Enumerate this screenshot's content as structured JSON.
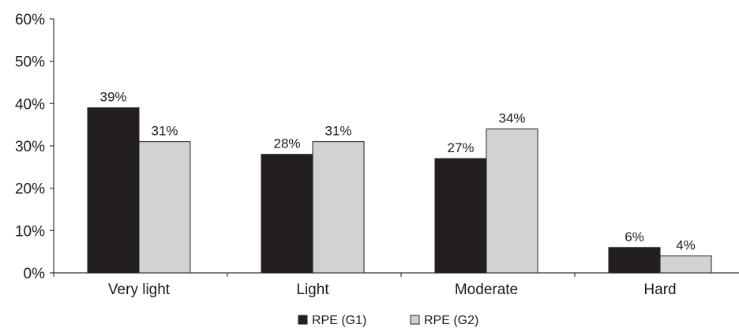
{
  "chart_data": {
    "type": "bar",
    "categories": [
      "Very light",
      "Light",
      "Moderate",
      "Hard"
    ],
    "series": [
      {
        "name": "RPE (G1)",
        "values": [
          39,
          28,
          27,
          6
        ],
        "labels": [
          "39%",
          "28%",
          "27%",
          "6%"
        ],
        "color": "#231f20"
      },
      {
        "name": "RPE (G2)",
        "values": [
          31,
          31,
          34,
          4
        ],
        "labels": [
          "31%",
          "31%",
          "34%",
          "4%"
        ],
        "color": "#d1d2d4"
      }
    ],
    "yticks": [
      "0%",
      "10%",
      "20%",
      "30%",
      "40%",
      "50%",
      "60%"
    ],
    "ylim": [
      0,
      60
    ],
    "legend_position": "bottom-center",
    "grid": false
  }
}
